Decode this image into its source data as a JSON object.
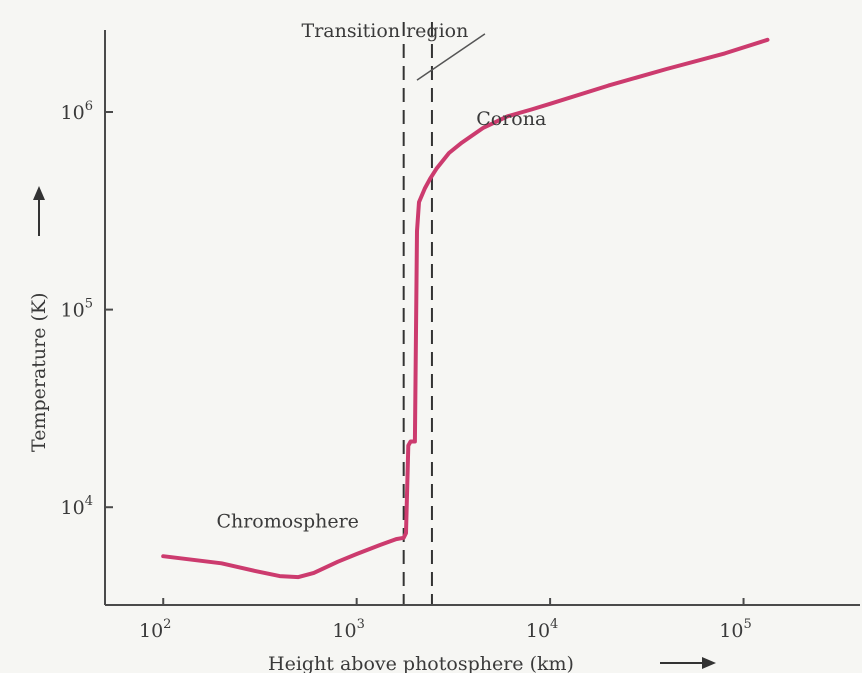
{
  "chart_data": {
    "type": "line",
    "title": "",
    "xlabel": "Height above photosphere (km)",
    "ylabel": "Temperature (K)",
    "x_scale": "log",
    "y_scale": "log",
    "xlim": [
      50,
      400000
    ],
    "ylim": [
      3200,
      2600000
    ],
    "x_ticks": [
      {
        "value": 100,
        "base": "10",
        "exp": "2"
      },
      {
        "value": 1000,
        "base": "10",
        "exp": "3"
      },
      {
        "value": 10000,
        "base": "10",
        "exp": "4"
      },
      {
        "value": 100000,
        "base": "10",
        "exp": "5"
      }
    ],
    "y_ticks": [
      {
        "value": 10000,
        "base": "10",
        "exp": "4"
      },
      {
        "value": 100000,
        "base": "10",
        "exp": "5"
      },
      {
        "value": 1000000,
        "base": "10",
        "exp": "6"
      }
    ],
    "grid": false,
    "line_color": "#cc3b6e",
    "series": [
      {
        "name": "",
        "x": [
          100,
          200,
          300,
          400,
          500,
          600,
          800,
          1000,
          1300,
          1600,
          1750,
          1800,
          1850,
          1900,
          1950,
          2000,
          2050,
          2100,
          2250,
          2400,
          2600,
          3000,
          3500,
          4500,
          6000,
          8000,
          10000,
          20000,
          40000,
          80000,
          133000
        ],
        "y": [
          5650,
          5200,
          4750,
          4480,
          4430,
          4650,
          5300,
          5800,
          6400,
          6900,
          7000,
          7400,
          20500,
          21500,
          21500,
          21500,
          250000,
          350000,
          410000,
          460000,
          520000,
          620000,
          700000,
          830000,
          950000,
          1030000,
          1100000,
          1360000,
          1650000,
          1980000,
          2320000
        ]
      }
    ],
    "reference_lines": [
      {
        "axis": "x",
        "value": 1750,
        "style": "dashed"
      },
      {
        "axis": "x",
        "value": 2450,
        "style": "dashed"
      }
    ],
    "annotations": [
      {
        "text": "Transition region",
        "x": 1400,
        "y": 2400000,
        "arrow_to": [
          2050,
          1450000
        ]
      },
      {
        "text": "Corona",
        "x": 6300,
        "y": 860000
      },
      {
        "text": "Chromosphere",
        "x": 440,
        "y": 7900
      }
    ]
  }
}
